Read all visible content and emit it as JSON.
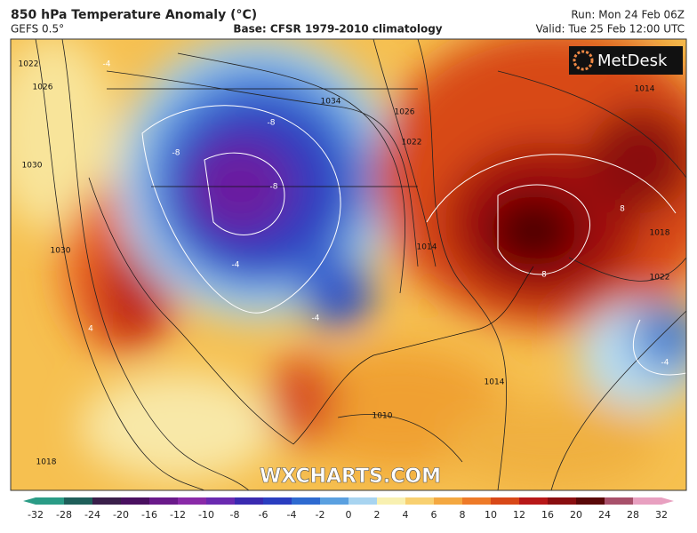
{
  "header": {
    "title": "850 hPa Temperature Anomaly (°C)",
    "model": "GEFS 0.5°",
    "base": "Base: CFSR 1979-2010 climatology",
    "run": "Run: Mon 24 Feb 06Z",
    "valid": "Valid: Tue 25 Feb 12:00 UTC"
  },
  "logo": "MetDesk",
  "watermark": "WXCHARTS.COM",
  "isobar_labels": [
    "1022",
    "1026",
    "1030",
    "1030",
    "1034",
    "1026",
    "1022",
    "1014",
    "1018",
    "1022",
    "1014",
    "1010",
    "1014",
    "1018"
  ],
  "anomaly_labels": [
    "-4",
    "-8",
    "-8",
    "-8",
    "-4",
    "-4",
    "8",
    "8",
    "-4",
    "4"
  ],
  "colorbar": {
    "ticks": [
      -32,
      -28,
      -24,
      -20,
      -16,
      -12,
      -10,
      -8,
      -6,
      -4,
      -2,
      0,
      2,
      4,
      6,
      8,
      10,
      12,
      16,
      20,
      24,
      28,
      32
    ],
    "colors": [
      "#2a9c86",
      "#1f5f5a",
      "#3a1f4a",
      "#4a1060",
      "#6a1a8a",
      "#8a2aa8",
      "#6a2ab0",
      "#3a2ab0",
      "#2a3ec0",
      "#2e6ad0",
      "#5aa0e0",
      "#a8d4f0",
      "#f8f0b0",
      "#f8d070",
      "#f4a840",
      "#ee7a28",
      "#d84818",
      "#b81818",
      "#8a0e10",
      "#5a0808",
      "#a8506a",
      "#e8a0c0"
    ]
  }
}
